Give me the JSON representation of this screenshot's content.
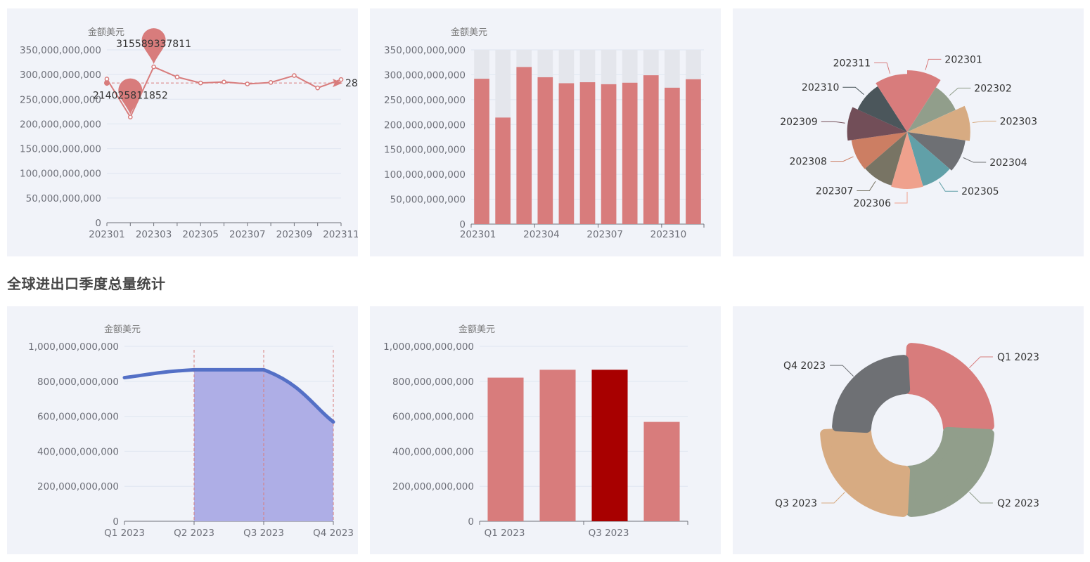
{
  "section_title": "全球进出口季度总量统计",
  "colors": {
    "primary": "#d87c7c",
    "highlight": "#a80000",
    "area_line": "#5470c6",
    "area_fill": "#aeaee6",
    "bar_shadow": "#e4e6ec",
    "panel_bg": "#f1f3f9",
    "palette": [
      "#d87c7c",
      "#919e8b",
      "#d7ab82",
      "#6e7074",
      "#61a0a8",
      "#efa18d",
      "#787464",
      "#cc7e63",
      "#724e58",
      "#4b565b"
    ]
  },
  "chart_data": [
    {
      "type": "line",
      "unit_label": "金额美元",
      "x": [
        "202301",
        "202302",
        "202303",
        "202304",
        "202305",
        "202306",
        "202307",
        "202308",
        "202309",
        "202310",
        "202311"
      ],
      "x_tick_labels": [
        "202301",
        "202303",
        "202305",
        "202307",
        "202309",
        "202311"
      ],
      "values": [
        291000000000,
        214025811852,
        315589337811,
        295000000000,
        283000000000,
        285000000000,
        281000000000,
        284000000000,
        298000000000,
        273000000000,
        290000000000
      ],
      "y_ticks": [
        "0",
        "50,000,000,000",
        "100,000,000,000",
        "150,000,000,000",
        "200,000,000,000",
        "250,000,000,000",
        "300,000,000,000",
        "350,000,000,000"
      ],
      "ylim": [
        0,
        350000000000
      ],
      "markpoint_max_label": "315589337811",
      "markpoint_min_label": "214025811852",
      "markline_label": "28",
      "average": 283000000000
    },
    {
      "type": "bar",
      "unit_label": "金额美元",
      "categories": [
        "202301",
        "202302",
        "202303",
        "202304",
        "202305",
        "202306",
        "202307",
        "202308",
        "202309",
        "202310",
        "202311"
      ],
      "x_tick_labels": [
        "202301",
        "202304",
        "202307",
        "202310"
      ],
      "values": [
        292000000000,
        214025811852,
        315589337811,
        295000000000,
        283000000000,
        285000000000,
        281000000000,
        284000000000,
        299000000000,
        274000000000,
        291000000000
      ],
      "y_ticks": [
        "0",
        "50,000,000,000",
        "100,000,000,000",
        "150,000,000,000",
        "200,000,000,000",
        "250,000,000,000",
        "300,000,000,000",
        "350,000,000,000"
      ],
      "ylim": [
        0,
        350000000000
      ],
      "background_bars": true
    },
    {
      "type": "pie",
      "categories": [
        "202301",
        "202302",
        "202303",
        "202304",
        "202305",
        "202306",
        "202307",
        "202308",
        "202309",
        "202310",
        "202311"
      ],
      "values": [
        292,
        214,
        315,
        295,
        283,
        285,
        281,
        284,
        299,
        274,
        291
      ],
      "rose_type": "radius"
    },
    {
      "type": "area",
      "unit_label": "金额美元",
      "categories": [
        "Q1 2023",
        "Q2 2023",
        "Q3 2023",
        "Q4 2023"
      ],
      "values": [
        821000000000,
        866000000000,
        866000000000,
        568000000000
      ],
      "y_ticks": [
        "0",
        "200,000,000,000",
        "400,000,000,000",
        "600,000,000,000",
        "800,000,000,000",
        "1,000,000,000,000"
      ],
      "ylim": [
        0,
        1000000000000
      ],
      "shaded_from_index": 1
    },
    {
      "type": "bar",
      "unit_label": "金额美元",
      "categories": [
        "Q1 2023",
        "Q2 2023",
        "Q3 2023",
        "Q4 2023"
      ],
      "x_tick_labels": [
        "Q1 2023",
        "Q3 2023"
      ],
      "values": [
        821000000000,
        866000000000,
        866000000000,
        568000000000
      ],
      "highlight_index": 2,
      "y_ticks": [
        "0",
        "200,000,000,000",
        "400,000,000,000",
        "600,000,000,000",
        "800,000,000,000",
        "1,000,000,000,000"
      ],
      "ylim": [
        0,
        1000000000000
      ]
    },
    {
      "type": "pie",
      "categories": [
        "Q1 2023",
        "Q2 2023",
        "Q3 2023",
        "Q4 2023"
      ],
      "values": [
        25,
        25,
        25,
        25
      ],
      "donut": true
    }
  ]
}
